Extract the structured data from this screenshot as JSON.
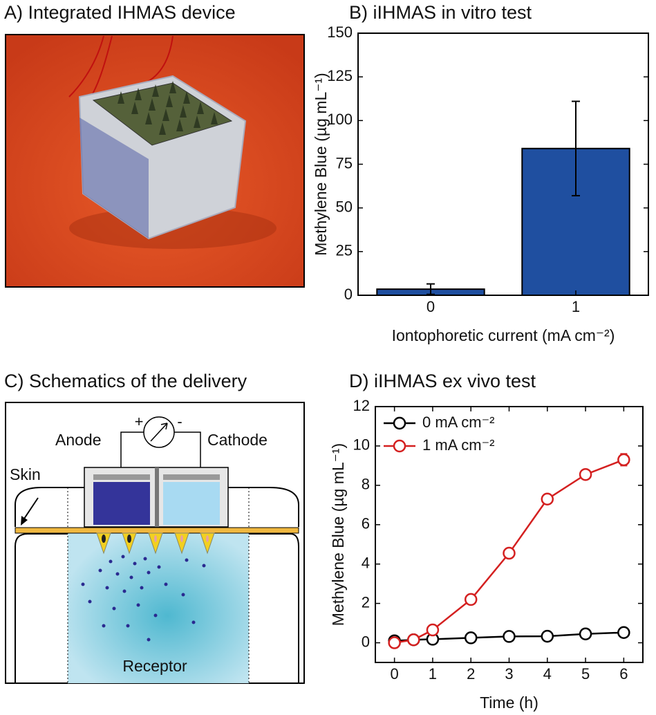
{
  "photo": {
    "title": "A) Integrated IHMAS device"
  },
  "schematic": {
    "title": "C) Schematics of the delivery",
    "labels": {
      "anode": "Anode",
      "cathode": "Cathode",
      "skin": "Skin",
      "receptor": "Receptor",
      "plus": "+",
      "minus": "-"
    }
  },
  "chart_data": [
    {
      "type": "bar",
      "title": "B) iIHMAS in vitro test",
      "x_label": "Iontophoretic current (mA cm⁻²)",
      "y_label": "Methylene Blue (µg mL⁻¹)",
      "categories": [
        "0",
        "1"
      ],
      "values": [
        3.5,
        84
      ],
      "errors": [
        3,
        27
      ],
      "color": "#1f4fa0",
      "ylim": [
        0,
        150
      ],
      "yticks": [
        0,
        25,
        50,
        75,
        100,
        125,
        150
      ]
    },
    {
      "type": "line",
      "title": "D) iIHMAS ex vivo test",
      "x_label": "Time (h)",
      "y_label": "Methylene Blue (µg mL⁻¹)",
      "x": [
        0,
        0.5,
        1,
        2,
        3,
        4,
        5,
        6
      ],
      "series": [
        {
          "name": "0 mA cm⁻²",
          "color": "#000000",
          "values": [
            0.1,
            0.15,
            0.18,
            0.25,
            0.32,
            0.33,
            0.45,
            0.52
          ],
          "errors": [
            0.1,
            0.1,
            0.1,
            0.15,
            0.1,
            0.1,
            0.15,
            0.15
          ]
        },
        {
          "name": "1 mA cm⁻²",
          "color": "#d42020",
          "values": [
            0,
            0.15,
            0.65,
            2.2,
            4.55,
            7.3,
            8.55,
            9.3
          ],
          "errors": [
            0.05,
            0.1,
            0.15,
            0.2,
            0.15,
            0.15,
            0.15,
            0.3
          ]
        }
      ],
      "xlim": [
        -0.5,
        6.5
      ],
      "xticks": [
        0,
        1,
        2,
        3,
        4,
        5,
        6
      ],
      "ylim": [
        -1,
        12
      ],
      "yticks": [
        0,
        2,
        4,
        6,
        8,
        10,
        12
      ],
      "legend": "upper left"
    }
  ]
}
